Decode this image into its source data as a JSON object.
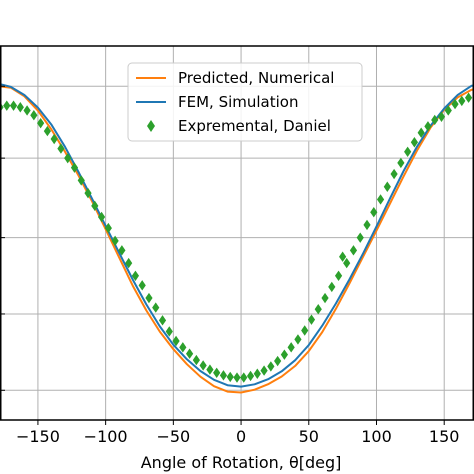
{
  "chart_data": {
    "type": "line",
    "title": "",
    "xlabel": "Angle of Rotation, θ[deg]",
    "ylabel": "",
    "xlim": [
      -178,
      172
    ],
    "ylim": [
      0,
      1
    ],
    "grid": true,
    "legend_position": "top-center",
    "x_ticks": [
      -150,
      -100,
      -50,
      0,
      50,
      100,
      150
    ],
    "x_tick_labels": [
      "−150",
      "−100",
      "−50",
      "0",
      "50",
      "100",
      "150"
    ],
    "y_gridlines": [
      0.04,
      0.28,
      0.52,
      0.77,
      0.996
    ],
    "series": [
      {
        "name": "Predicted, Numerical",
        "kind": "line",
        "color": "#ff7f0e",
        "x": [
          -180,
          -170,
          -160,
          -150,
          -140,
          -130,
          -120,
          -110,
          -100,
          -90,
          -80,
          -70,
          -60,
          -50,
          -40,
          -30,
          -20,
          -10,
          0,
          10,
          20,
          30,
          40,
          50,
          60,
          70,
          80,
          90,
          100,
          110,
          120,
          130,
          140,
          150,
          160,
          170,
          180
        ],
        "y": [
          0.997,
          0.988,
          0.961,
          0.919,
          0.863,
          0.794,
          0.716,
          0.631,
          0.543,
          0.456,
          0.372,
          0.295,
          0.226,
          0.167,
          0.118,
          0.081,
          0.055,
          0.04,
          0.035,
          0.04,
          0.055,
          0.081,
          0.118,
          0.167,
          0.226,
          0.295,
          0.372,
          0.456,
          0.543,
          0.631,
          0.716,
          0.794,
          0.863,
          0.919,
          0.961,
          0.988,
          0.997
        ]
      },
      {
        "name": "FEM, Simulation",
        "kind": "line",
        "color": "#1f77b4",
        "x": [
          -180,
          -170,
          -160,
          -150,
          -140,
          -130,
          -120,
          -110,
          -100,
          -90,
          -80,
          -70,
          -60,
          -50,
          -40,
          -30,
          -20,
          -10,
          0,
          10,
          20,
          30,
          40,
          50,
          60,
          70,
          80,
          90,
          100,
          110,
          120,
          130,
          140,
          150,
          160,
          170,
          180
        ],
        "y": [
          1.005,
          0.996,
          0.97,
          0.928,
          0.873,
          0.805,
          0.728,
          0.644,
          0.557,
          0.47,
          0.387,
          0.311,
          0.243,
          0.184,
          0.136,
          0.099,
          0.073,
          0.058,
          0.053,
          0.058,
          0.073,
          0.099,
          0.136,
          0.184,
          0.243,
          0.311,
          0.387,
          0.47,
          0.557,
          0.644,
          0.728,
          0.805,
          0.873,
          0.928,
          0.97,
          0.996,
          1.005
        ]
      },
      {
        "name": "Expremental, Daniel",
        "kind": "scatter",
        "marker": "diamond",
        "color": "#2ca02c",
        "x": [
          -178,
          -173,
          -168,
          -163,
          -158,
          -153,
          -148,
          -143,
          -138,
          -133,
          -128,
          -123,
          -118,
          -113,
          -108,
          -103,
          -98,
          -93,
          -88,
          -83,
          -78,
          -73,
          -68,
          -63,
          -58,
          -53,
          -48,
          -43,
          -38,
          -33,
          -28,
          -23,
          -18,
          -13,
          -8,
          -3,
          2,
          7,
          12,
          17,
          22,
          27,
          32,
          37,
          42,
          47,
          52,
          57,
          62,
          67,
          72,
          75,
          78,
          83,
          88,
          93,
          98,
          103,
          108,
          113,
          118,
          123,
          128,
          133,
          138,
          143,
          148,
          153,
          158,
          163,
          168
        ],
        "y": [
          0.93,
          0.935,
          0.935,
          0.93,
          0.92,
          0.905,
          0.88,
          0.855,
          0.83,
          0.8,
          0.77,
          0.74,
          0.7,
          0.66,
          0.62,
          0.585,
          0.55,
          0.51,
          0.48,
          0.44,
          0.4,
          0.37,
          0.33,
          0.3,
          0.26,
          0.225,
          0.195,
          0.175,
          0.155,
          0.135,
          0.118,
          0.105,
          0.095,
          0.087,
          0.082,
          0.08,
          0.08,
          0.085,
          0.092,
          0.102,
          0.115,
          0.132,
          0.152,
          0.175,
          0.2,
          0.228,
          0.262,
          0.295,
          0.33,
          0.365,
          0.4,
          0.46,
          0.44,
          0.48,
          0.52,
          0.56,
          0.6,
          0.64,
          0.68,
          0.72,
          0.755,
          0.79,
          0.82,
          0.85,
          0.87,
          0.89,
          0.9,
          0.92,
          0.94,
          0.95,
          0.96
        ]
      }
    ]
  }
}
